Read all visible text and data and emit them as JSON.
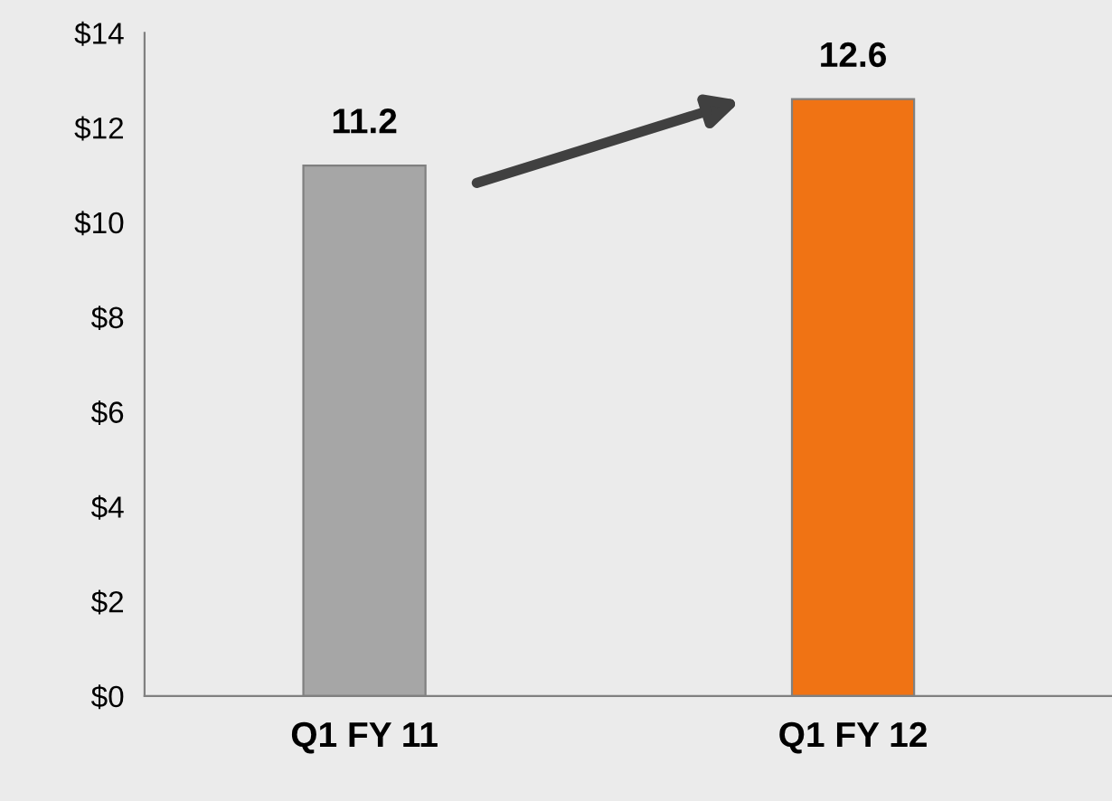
{
  "chart_data": {
    "type": "bar",
    "categories": [
      "Q1 FY 11",
      "Q1 FY 12"
    ],
    "values": [
      11.2,
      12.6
    ],
    "colors": [
      "#a6a6a6",
      "#f07314"
    ],
    "ylim": [
      0,
      14
    ],
    "yticks": [
      {
        "value": 0,
        "label": "$0"
      },
      {
        "value": 2,
        "label": "$2"
      },
      {
        "value": 4,
        "label": "$4"
      },
      {
        "value": 6,
        "label": "$6"
      },
      {
        "value": 8,
        "label": "$8"
      },
      {
        "value": 10,
        "label": "$10"
      },
      {
        "value": 12,
        "label": "$12"
      },
      {
        "value": 14,
        "label": "$14"
      }
    ],
    "data_labels": true,
    "grid": false,
    "legend": false
  }
}
